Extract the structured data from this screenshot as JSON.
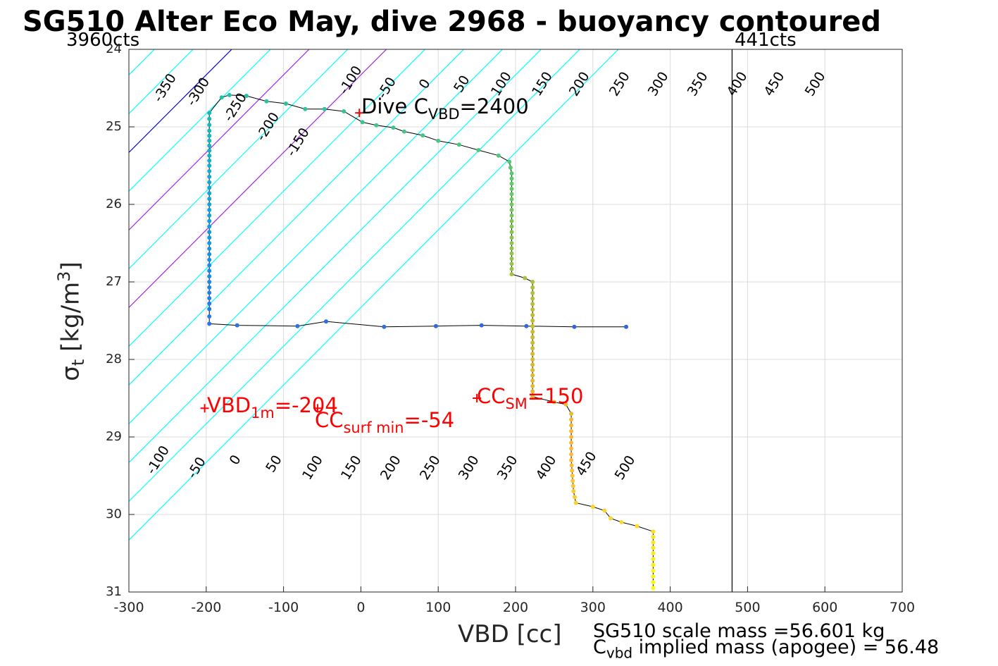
{
  "title": "SG510 Alter Eco May, dive 2968 - buoyancy contoured",
  "left_counts": "3960cts",
  "right_counts": "441cts",
  "footer": {
    "scale_mass": "SG510 scale mass =56.601 kg",
    "implied_mass_prefix": "C",
    "implied_mass_sub": "vbd",
    "implied_mass_suffix": " implied mass (apogee) = 56.48"
  },
  "annotations": {
    "dive_cvbd": {
      "prefix": "Dive C",
      "sub": "VBD",
      "suffix": "=2400"
    },
    "vbd_1m": {
      "prefix": "VBD",
      "sub": "1m",
      "suffix": "=-204"
    },
    "cc_surf_min": {
      "prefix": "CC",
      "sub": "surf min",
      "suffix": "=-54"
    },
    "cc_sm": {
      "prefix": "CC",
      "sub": "SM",
      "suffix": "=150"
    }
  },
  "colors": {
    "contour": "#00ffff",
    "zero_contour": "#0000cd",
    "magenta_contour": "#a020f0",
    "annotation": "#ff0000",
    "track": "#000000"
  },
  "chart_data": {
    "type": "scatter",
    "title": "SG510 Alter Eco May, dive 2968 - buoyancy contoured",
    "xlabel": "VBD [cc]",
    "ylabel_main": "σ",
    "ylabel_sub": "t",
    "ylabel_unit_pre": " [kg/m",
    "ylabel_unit_sup": "3",
    "ylabel_unit_post": "]",
    "xlim": [
      -300,
      700
    ],
    "ylim": [
      31,
      24
    ],
    "xticks": [
      "-300",
      "-100",
      "-200",
      "0",
      "100",
      "200",
      "300",
      "400",
      "500",
      "600",
      "700"
    ],
    "xticks_values": [
      -300,
      -100,
      -200,
      0,
      100,
      200,
      300,
      400,
      500,
      600,
      700
    ],
    "yticks": [
      24,
      25,
      26,
      27,
      28,
      29,
      30,
      31
    ],
    "grid": true,
    "vline_x": 480,
    "contour_levels": [
      -350,
      -300,
      -250,
      -200,
      -150,
      -100,
      -50,
      0,
      50,
      100,
      150,
      200,
      250,
      300,
      350,
      400,
      450,
      500
    ],
    "contour_offsets": [
      -577,
      -527,
      -477,
      -427,
      -377,
      -327,
      -277,
      -227,
      -177,
      -127,
      -77,
      -27,
      23,
      73,
      123,
      173,
      223,
      273
    ],
    "contour_slope_cc_per_sigma": 100,
    "contour_ref_sigma": 24.6,
    "top_labels": [
      {
        "text": "-350",
        "x": -253,
        "y": 24.5
      },
      {
        "text": "-300",
        "x": -210,
        "y": 24.55
      },
      {
        "text": "-250",
        "x": -162,
        "y": 24.75
      },
      {
        "text": "-200",
        "x": -120,
        "y": 25.0
      },
      {
        "text": "-150",
        "x": -81,
        "y": 25.2
      },
      {
        "text": "-100",
        "x": -13,
        "y": 24.4
      },
      {
        "text": "-50",
        "x": 34,
        "y": 24.5
      },
      {
        "text": "0",
        "x": 83,
        "y": 24.45
      },
      {
        "text": "50",
        "x": 131,
        "y": 24.45
      },
      {
        "text": "100",
        "x": 182,
        "y": 24.45
      },
      {
        "text": "150",
        "x": 235,
        "y": 24.45
      },
      {
        "text": "200",
        "x": 283,
        "y": 24.45
      },
      {
        "text": "250",
        "x": 335,
        "y": 24.45
      },
      {
        "text": "300",
        "x": 385,
        "y": 24.45
      },
      {
        "text": "350",
        "x": 436,
        "y": 24.45
      },
      {
        "text": "400",
        "x": 487,
        "y": 24.45
      },
      {
        "text": "450",
        "x": 535,
        "y": 24.45
      },
      {
        "text": "500",
        "x": 588,
        "y": 24.45
      }
    ],
    "bottom_labels": [
      {
        "text": "-100",
        "x": -262,
        "y": 29.3
      },
      {
        "text": "-50",
        "x": -212,
        "y": 29.4
      },
      {
        "text": "0",
        "x": -162,
        "y": 29.3
      },
      {
        "text": "50",
        "x": -112,
        "y": 29.35
      },
      {
        "text": "100",
        "x": -62,
        "y": 29.4
      },
      {
        "text": "150",
        "x": -12,
        "y": 29.4
      },
      {
        "text": "200",
        "x": 39,
        "y": 29.4
      },
      {
        "text": "250",
        "x": 90,
        "y": 29.4
      },
      {
        "text": "300",
        "x": 140,
        "y": 29.4
      },
      {
        "text": "350",
        "x": 190,
        "y": 29.4
      },
      {
        "text": "400",
        "x": 240,
        "y": 29.4
      },
      {
        "text": "450",
        "x": 292,
        "y": 29.35
      },
      {
        "text": "500",
        "x": 342,
        "y": 29.4
      }
    ],
    "markers": [
      {
        "name": "dive_cvbd",
        "x": -2,
        "y": 24.82
      },
      {
        "name": "vbd_1m",
        "x": -202,
        "y": 28.63
      },
      {
        "name": "cc_surf_min",
        "x": -56,
        "y": 28.63
      },
      {
        "name": "cc_sm",
        "x": 150,
        "y": 28.5
      }
    ],
    "track": [
      [
        -196,
        24.82
      ],
      [
        -196,
        25.05
      ],
      [
        -196,
        25.5
      ],
      [
        -196,
        26.0
      ],
      [
        -196,
        26.5
      ],
      [
        -196,
        27.0
      ],
      [
        -196,
        27.35
      ],
      [
        -196,
        27.54
      ],
      [
        -160,
        27.56
      ],
      [
        -82,
        27.57
      ],
      [
        -45,
        27.51
      ],
      [
        30,
        27.58
      ],
      [
        97,
        27.57
      ],
      [
        156,
        27.56
      ],
      [
        214,
        27.57
      ],
      [
        276,
        27.58
      ],
      [
        343,
        27.58
      ]
    ],
    "track_descent": [
      [
        -196,
        24.82
      ],
      [
        -180,
        24.62
      ],
      [
        -170,
        24.59
      ],
      [
        -148,
        24.6
      ],
      [
        -122,
        24.67
      ],
      [
        -97,
        24.7
      ],
      [
        -72,
        24.77
      ],
      [
        -47,
        24.77
      ],
      [
        -22,
        24.8
      ],
      [
        2,
        24.94
      ],
      [
        20,
        24.98
      ],
      [
        42,
        25.01
      ],
      [
        56,
        25.06
      ],
      [
        80,
        25.11
      ],
      [
        100,
        25.18
      ],
      [
        127,
        25.23
      ],
      [
        152,
        25.3
      ],
      [
        178,
        25.37
      ],
      [
        192,
        25.45
      ],
      [
        195,
        25.6
      ],
      [
        195,
        26.0
      ],
      [
        195,
        26.5
      ],
      [
        195,
        26.9
      ],
      [
        212,
        26.95
      ],
      [
        222,
        27.0
      ],
      [
        222,
        27.5
      ],
      [
        222,
        28.0
      ],
      [
        222,
        28.48
      ],
      [
        250,
        28.55
      ],
      [
        265,
        28.58
      ],
      [
        272,
        28.7
      ],
      [
        272,
        29.0
      ],
      [
        272,
        29.3
      ],
      [
        275,
        29.7
      ],
      [
        278,
        29.85
      ],
      [
        300,
        29.9
      ],
      [
        315,
        29.95
      ],
      [
        323,
        30.05
      ],
      [
        337,
        30.1
      ],
      [
        357,
        30.15
      ],
      [
        378,
        30.22
      ],
      [
        378,
        30.5
      ],
      [
        378,
        30.8
      ],
      [
        378,
        30.95
      ]
    ]
  }
}
